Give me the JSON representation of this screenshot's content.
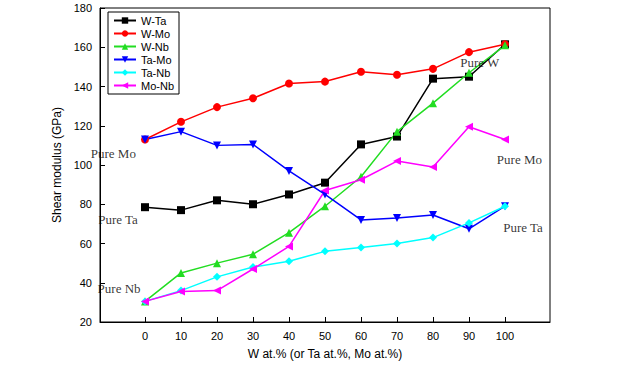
{
  "chart_data": {
    "type": "line",
    "x_label": "W at.% (or Ta at.%, Mo at.%)",
    "y_label": "Shear modulus (GPa)",
    "x": [
      0,
      10,
      20,
      30,
      40,
      50,
      60,
      70,
      80,
      90,
      100
    ],
    "xlim": [
      -12.5,
      112.5
    ],
    "xticks": [
      0,
      10,
      20,
      30,
      40,
      50,
      60,
      70,
      80,
      90,
      100
    ],
    "ylim": [
      20,
      180
    ],
    "yticks": [
      20,
      40,
      60,
      80,
      100,
      120,
      140,
      160,
      180
    ],
    "grid": false,
    "legend": "upper left",
    "series": [
      {
        "name": "W-Ta",
        "color": "#000000",
        "marker": "square",
        "values": [
          78.5,
          77,
          82,
          80,
          85,
          91,
          110.5,
          114.5,
          144,
          145,
          161.5
        ]
      },
      {
        "name": "W-Mo",
        "color": "#ff0000",
        "marker": "circle",
        "values": [
          113,
          122,
          129.5,
          134,
          141.5,
          142.5,
          147.5,
          146,
          149,
          157.5,
          161.5
        ]
      },
      {
        "name": "W-Nb",
        "color": "#22dd22",
        "marker": "triangle-up",
        "values": [
          30.5,
          45,
          50,
          54.5,
          65.5,
          79,
          94,
          117,
          131.5,
          147,
          161
        ]
      },
      {
        "name": "Ta-Mo",
        "color": "#0000ff",
        "marker": "triangle-down",
        "values": [
          113,
          117,
          110,
          110.5,
          97,
          85,
          72,
          73,
          74.5,
          67.5,
          79
        ]
      },
      {
        "name": "Ta-Nb",
        "color": "#00ffff",
        "marker": "diamond",
        "values": [
          30.5,
          36,
          43,
          48,
          51,
          56,
          58,
          60,
          63,
          70.5,
          79
        ]
      },
      {
        "name": "Mo-Nb",
        "color": "#ff00ff",
        "marker": "triangle-left",
        "values": [
          30.5,
          35.5,
          36,
          47,
          58.5,
          87,
          92.5,
          102,
          99,
          119.5,
          113
        ]
      }
    ],
    "annotations": [
      {
        "text": "Pure Mo",
        "x": -8.8,
        "y": 106
      },
      {
        "text": "Pure Ta",
        "x": -7.5,
        "y": 72
      },
      {
        "text": "Pure Nb",
        "x": -7.2,
        "y": 37
      },
      {
        "text": "Pure W",
        "x": 93,
        "y": 152
      },
      {
        "text": "Pure Mo",
        "x": 104,
        "y": 103
      },
      {
        "text": "Pure Ta",
        "x": 105,
        "y": 68
      }
    ]
  }
}
